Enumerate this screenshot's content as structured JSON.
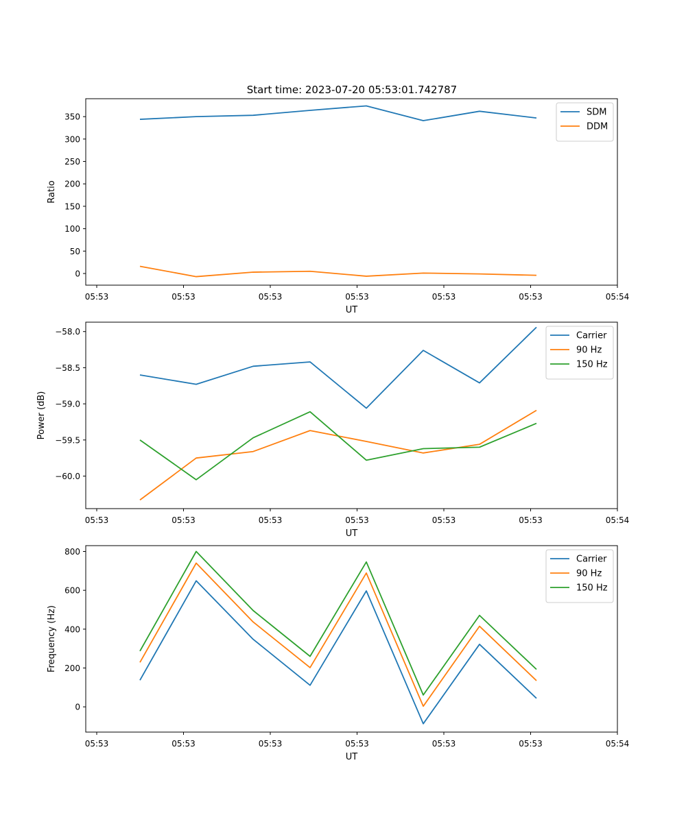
{
  "figure": {
    "title": "Start time: 2023-07-20 05:53:01.742787"
  },
  "chart_data": [
    {
      "type": "line",
      "xlabel": "UT",
      "ylabel": "Ratio",
      "x_tick_labels": [
        "05:53",
        "05:53",
        "05:53",
        "05:53",
        "05:53",
        "05:53",
        "05:54"
      ],
      "y_ticks": [
        0,
        50,
        100,
        150,
        200,
        250,
        300,
        350
      ],
      "ylim": [
        -26,
        390
      ],
      "legend_position": "upper-right",
      "series": [
        {
          "name": "SDM",
          "color": "#1f77b4",
          "values": [
            344,
            350,
            353,
            364,
            374,
            341,
            362,
            347
          ]
        },
        {
          "name": "DDM",
          "color": "#ff7f0e",
          "values": [
            16,
            -7,
            3,
            5,
            -6,
            1,
            -1,
            -4
          ]
        }
      ]
    },
    {
      "type": "line",
      "xlabel": "UT",
      "ylabel": "Power (dB)",
      "x_tick_labels": [
        "05:53",
        "05:53",
        "05:53",
        "05:53",
        "05:53",
        "05:53",
        "05:54"
      ],
      "y_ticks": [
        -60.0,
        -59.5,
        -59.0,
        -58.5,
        -58.0
      ],
      "y_tick_labels": [
        "−60.0",
        "−59.5",
        "−59.0",
        "−58.5",
        "−58.0"
      ],
      "ylim": [
        -60.45,
        -57.87
      ],
      "legend_position": "upper-right",
      "series": [
        {
          "name": "Carrier",
          "color": "#1f77b4",
          "values": [
            -58.6,
            -58.73,
            -58.48,
            -58.42,
            -59.06,
            -58.26,
            -58.71,
            -57.94
          ]
        },
        {
          "name": "90 Hz",
          "color": "#ff7f0e",
          "values": [
            -60.33,
            -59.75,
            -59.66,
            -59.37,
            -59.52,
            -59.68,
            -59.56,
            -59.09
          ]
        },
        {
          "name": "150 Hz",
          "color": "#2ca02c",
          "values": [
            -59.5,
            -60.05,
            -59.47,
            -59.11,
            -59.78,
            -59.62,
            -59.6,
            -59.27
          ]
        }
      ]
    },
    {
      "type": "line",
      "xlabel": "UT",
      "ylabel": "Frequency (Hz)",
      "x_tick_labels": [
        "05:53",
        "05:53",
        "05:53",
        "05:53",
        "05:53",
        "05:53",
        "05:54"
      ],
      "y_ticks": [
        0,
        200,
        400,
        600,
        800
      ],
      "ylim": [
        -130,
        830
      ],
      "legend_position": "upper-right",
      "series": [
        {
          "name": "Carrier",
          "color": "#1f77b4",
          "values": [
            137,
            649,
            348,
            111,
            597,
            -87,
            322,
            44
          ]
        },
        {
          "name": "90 Hz",
          "color": "#ff7f0e",
          "values": [
            229,
            740,
            437,
            202,
            689,
            3,
            415,
            135
          ]
        },
        {
          "name": "150 Hz",
          "color": "#2ca02c",
          "values": [
            287,
            800,
            496,
            260,
            746,
            61,
            471,
            193
          ]
        }
      ]
    }
  ]
}
